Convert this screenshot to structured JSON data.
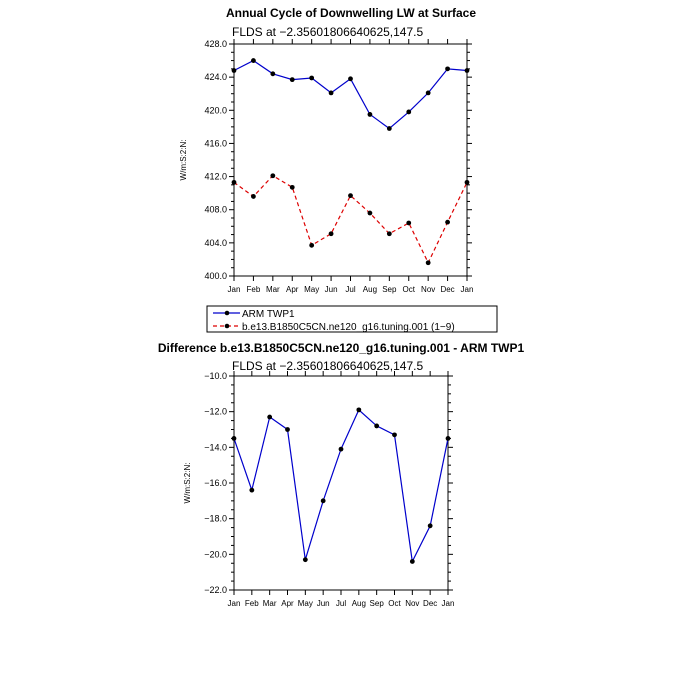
{
  "chart_data": [
    {
      "type": "line",
      "title": "Annual Cycle of Downwelling LW at Surface",
      "subtitle": "FLDS at −2.35601806640625,147.5",
      "ylabel": "W/m:S:2:N:",
      "ylim": [
        400.0,
        428.0
      ],
      "yticks": [
        "400.0",
        "404.0",
        "408.0",
        "412.0",
        "416.0",
        "420.0",
        "424.0",
        "428.0"
      ],
      "categories": [
        "Jan",
        "Feb",
        "Mar",
        "Apr",
        "May",
        "Jun",
        "Jul",
        "Aug",
        "Sep",
        "Oct",
        "Nov",
        "Dec",
        "Jan"
      ],
      "series": [
        {
          "name": "ARM TWP1",
          "color": "#0000cc",
          "dash": "solid",
          "values": [
            424.8,
            426.0,
            424.4,
            423.7,
            423.9,
            422.1,
            423.8,
            419.5,
            417.8,
            419.8,
            422.1,
            425.0,
            424.8
          ]
        },
        {
          "name": "b.e13.B1850C5CN.ne120_g16.tuning.001 (1−9)",
          "color": "#dd0000",
          "dash": "dashed",
          "values": [
            411.3,
            409.6,
            412.1,
            410.7,
            403.7,
            405.1,
            409.7,
            407.6,
            405.1,
            406.4,
            401.6,
            406.5,
            411.3
          ]
        }
      ],
      "legend_position": "bottom"
    },
    {
      "type": "line",
      "title": "Difference b.e13.B1850C5CN.ne120_g16.tuning.001 - ARM TWP1",
      "subtitle": "FLDS at −2.35601806640625,147.5",
      "ylabel": "W/m:S:2:N:",
      "ylim": [
        -22.0,
        -10.0
      ],
      "yticks": [
        "−22.0",
        "−20.0",
        "−18.0",
        "−16.0",
        "−14.0",
        "−12.0",
        "−10.0"
      ],
      "categories": [
        "Jan",
        "Feb",
        "Mar",
        "Apr",
        "May",
        "Jun",
        "Jul",
        "Aug",
        "Sep",
        "Oct",
        "Nov",
        "Dec",
        "Jan"
      ],
      "series": [
        {
          "color": "#0000cc",
          "dash": "solid",
          "values": [
            -13.5,
            -16.4,
            -12.3,
            -13.0,
            -20.3,
            -17.0,
            -14.1,
            -11.9,
            -12.8,
            -13.3,
            -20.4,
            -18.4,
            -13.5
          ]
        }
      ]
    }
  ]
}
